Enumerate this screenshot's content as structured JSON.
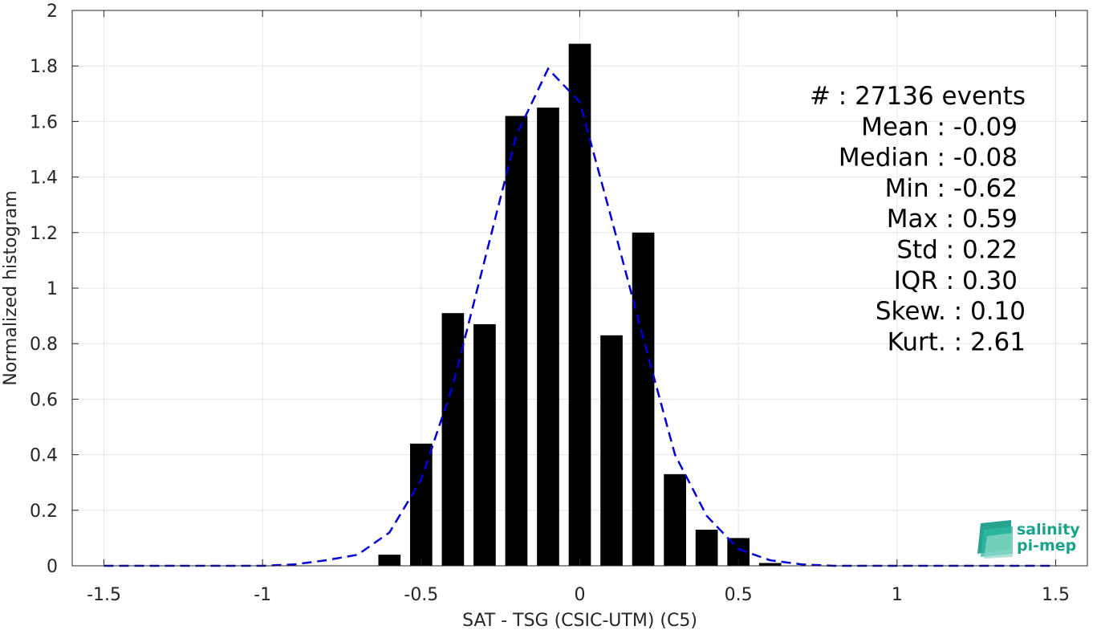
{
  "chart_data": {
    "type": "bar",
    "xlabel": "SAT - TSG (CSIC-UTM) (C5)",
    "ylabel": "Normalized histogram",
    "xlim": [
      -1.6,
      1.6
    ],
    "ylim": [
      0,
      2
    ],
    "xticks": [
      -1.5,
      -1,
      -0.5,
      0,
      0.5,
      1,
      1.5
    ],
    "xtick_labels": [
      "-1.5",
      "-1",
      "-0.5",
      "0",
      "0.5",
      "1",
      "1.5"
    ],
    "yticks": [
      0,
      0.2,
      0.4,
      0.6,
      0.8,
      1,
      1.2,
      1.4,
      1.6,
      1.8,
      2
    ],
    "ytick_labels": [
      "0",
      "0.2",
      "0.4",
      "0.6",
      "0.8",
      "1",
      "1.2",
      "1.4",
      "1.6",
      "1.8",
      "2"
    ],
    "grid": true,
    "bar_color": "#000000",
    "bar_width": 0.07,
    "bars": {
      "x": [
        -0.6,
        -0.5,
        -0.4,
        -0.3,
        -0.2,
        -0.1,
        0.0,
        0.1,
        0.2,
        0.3,
        0.4,
        0.5,
        0.6
      ],
      "values": [
        0.04,
        0.44,
        0.91,
        0.87,
        1.62,
        1.65,
        1.88,
        0.83,
        1.2,
        0.33,
        0.13,
        0.1,
        0.01
      ]
    },
    "fit_curve": {
      "style": "dashed",
      "color": "#0000dd",
      "x": [
        -1.5,
        -1.4,
        -1.3,
        -1.2,
        -1.1,
        -1.0,
        -0.9,
        -0.8,
        -0.7,
        -0.6,
        -0.5,
        -0.4,
        -0.3,
        -0.2,
        -0.1,
        0.0,
        0.1,
        0.2,
        0.3,
        0.4,
        0.5,
        0.6,
        0.7,
        0.8,
        0.9,
        1.0,
        1.1,
        1.2,
        1.3,
        1.4,
        1.5
      ],
      "y": [
        0,
        0,
        0,
        0,
        0,
        0,
        0.005,
        0.02,
        0.04,
        0.12,
        0.31,
        0.65,
        1.1,
        1.55,
        1.79,
        1.67,
        1.25,
        0.82,
        0.4,
        0.18,
        0.06,
        0.02,
        0.005,
        0,
        0,
        0,
        0,
        0,
        0,
        0,
        0
      ]
    },
    "stats": [
      "#  : 27136 events",
      "Mean : -0.09",
      "Median : -0.08",
      "Min : -0.62",
      "Max : 0.59",
      "Std : 0.22",
      "IQR : 0.30",
      "Skew. : 0.10",
      "Kurt. : 2.61"
    ]
  },
  "logo": {
    "line1": "salinity",
    "line2": "pi-mep",
    "color": "#16a58a"
  }
}
